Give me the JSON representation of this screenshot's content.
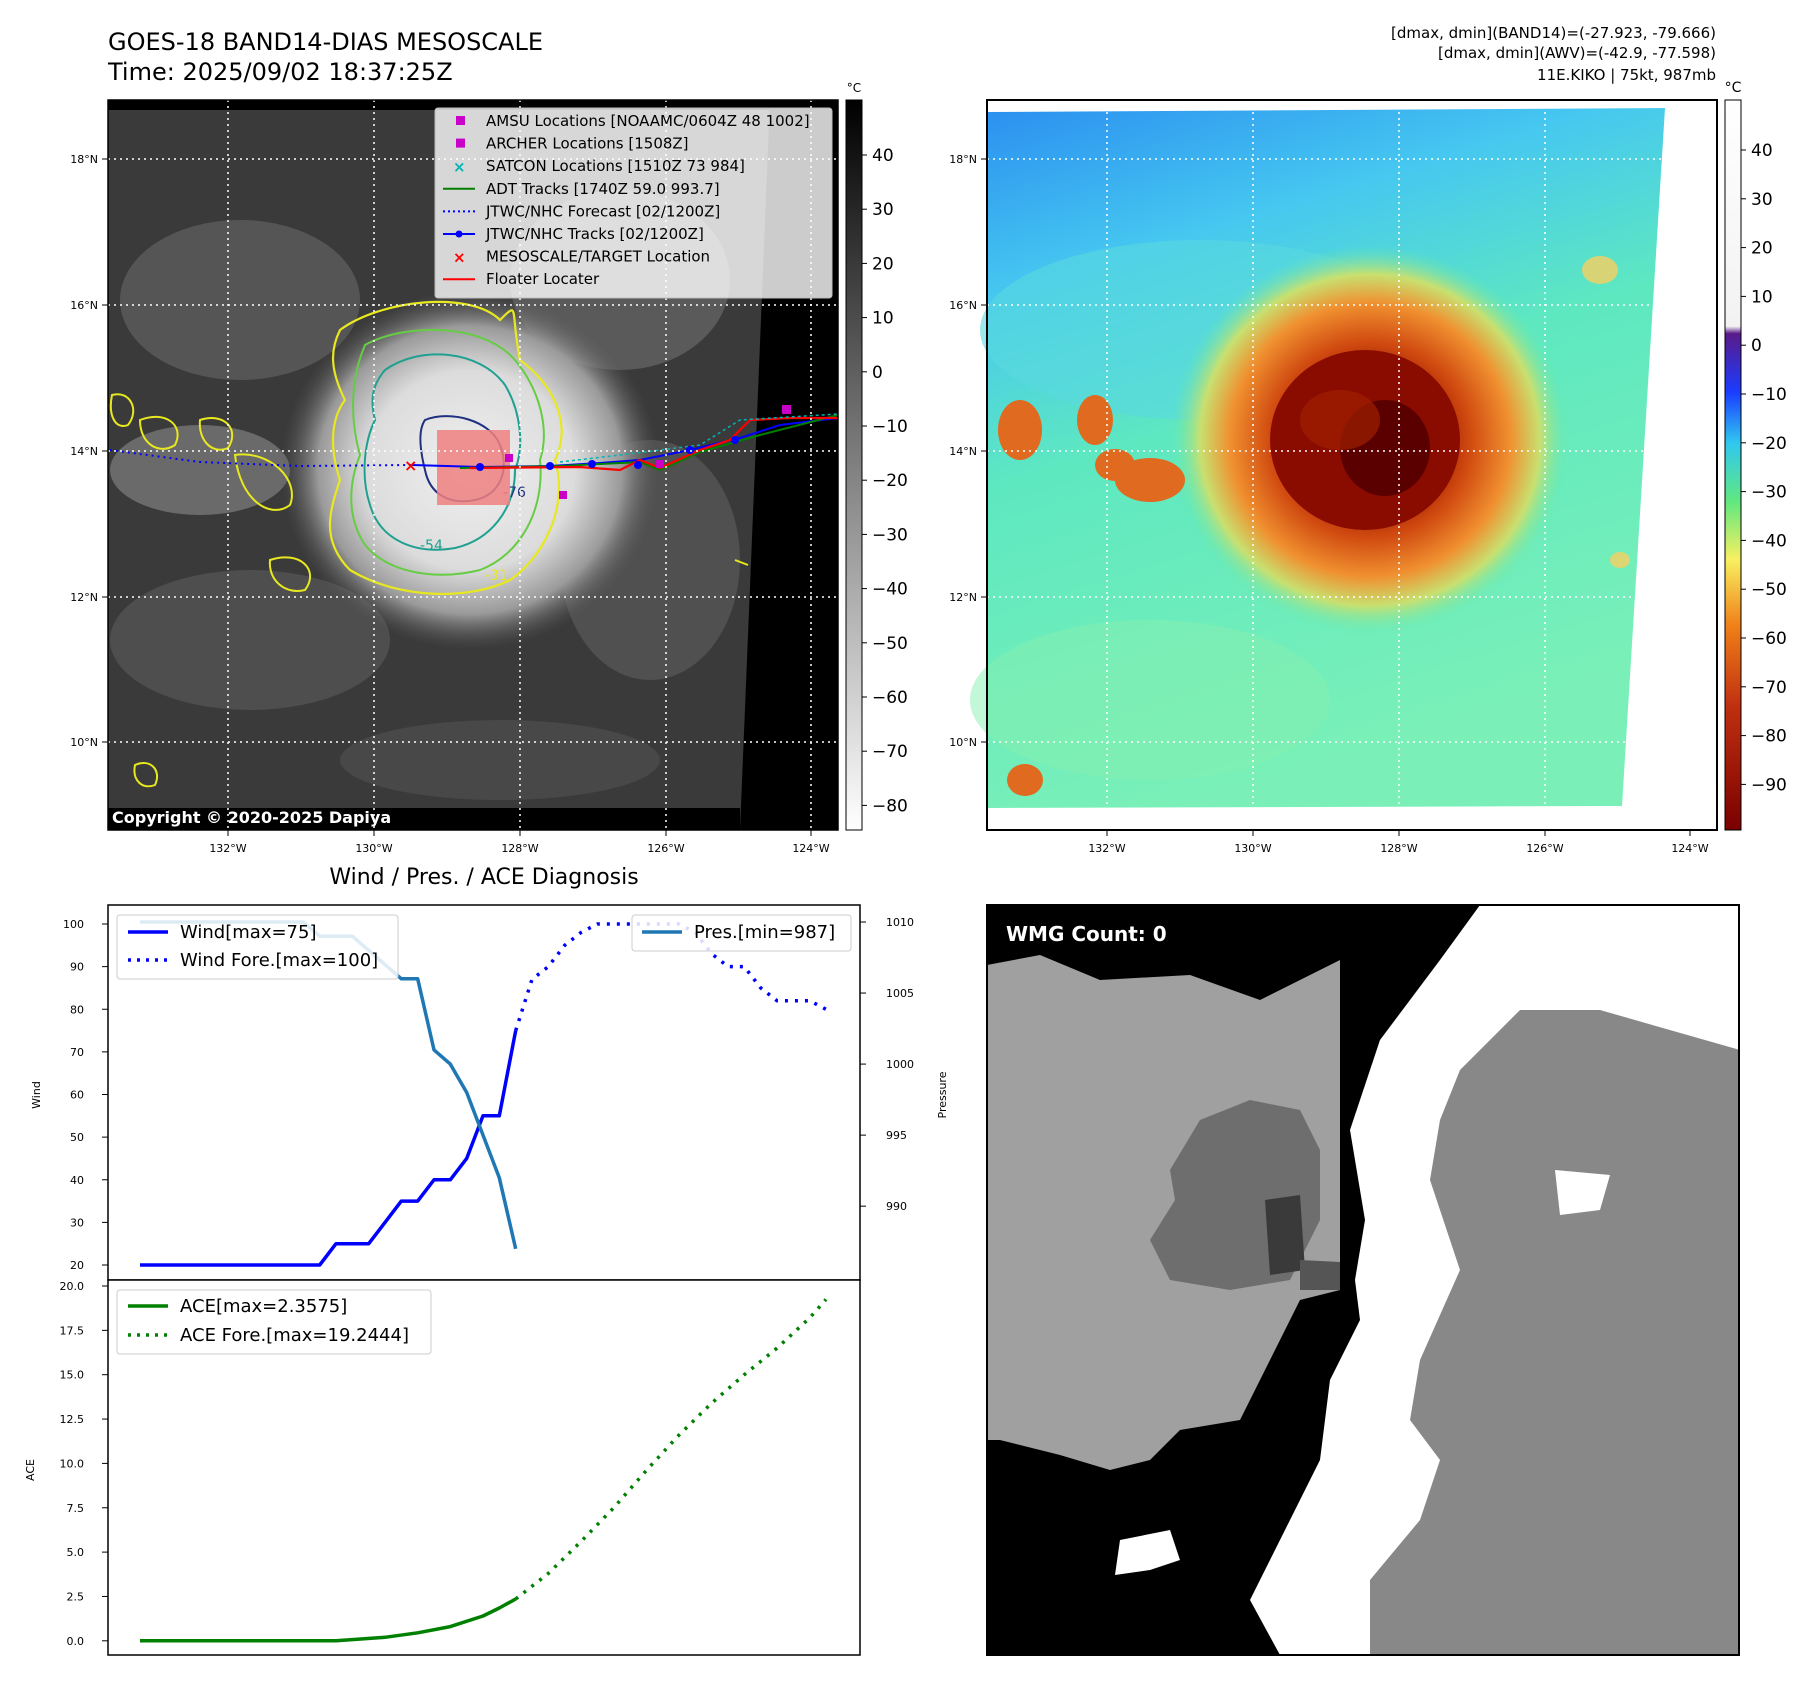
{
  "header": {
    "title_line1": "GOES-18 BAND14-DIAS MESOSCALE",
    "title_line2": "Time: 2025/09/02 18:37:25Z",
    "info_line1": "[dmax, dmin](BAND14)=(-27.923, -79.666)",
    "info_line2": "[dmax, dmin](AWV)=(-42.9, -77.598)",
    "info_line3": "11E.KIKO | 75kt, 987mb"
  },
  "map": {
    "lat_labels": [
      "18°N",
      "16°N",
      "14°N",
      "12°N",
      "10°N"
    ],
    "lon_labels": [
      "132°W",
      "130°W",
      "128°W",
      "126°W",
      "124°W"
    ],
    "copyright": "Copyright © 2020-2025 Dapiya",
    "contour_labels": [
      "-54",
      "-76",
      "-31"
    ],
    "legend": [
      {
        "label": "AMSU Locations [NOAAMC/0604Z 48 1002]",
        "color": "#c800c8",
        "marker": "square"
      },
      {
        "label": "ARCHER Locations [1508Z]",
        "color": "#c800c8",
        "marker": "square"
      },
      {
        "label": "SATCON Locations [1510Z 73 984]",
        "color": "#00b4b4",
        "marker": "x"
      },
      {
        "label": "ADT Tracks [1740Z 59.0 993.7]",
        "color": "#008000",
        "marker": "line"
      },
      {
        "label": "JTWC/NHC Forecast [02/1200Z]",
        "color": "#0000ff",
        "marker": "dotted"
      },
      {
        "label": "JTWC/NHC Tracks [02/1200Z]",
        "color": "#0000ff",
        "marker": "line-dot"
      },
      {
        "label": "MESOSCALE/TARGET Location",
        "color": "#ff0000",
        "marker": "x"
      },
      {
        "label": "Floater Locater",
        "color": "#ff0000",
        "marker": "line"
      }
    ]
  },
  "colorbar_gray": {
    "unit": "°C",
    "ticks": [
      "40",
      "30",
      "20",
      "10",
      "0",
      "−10",
      "−20",
      "−30",
      "−40",
      "−50",
      "−60",
      "−70",
      "−80"
    ]
  },
  "colorbar_color": {
    "unit": "°C",
    "ticks": [
      "40",
      "30",
      "20",
      "10",
      "0",
      "−10",
      "−20",
      "−30",
      "−40",
      "−50",
      "−60",
      "−70",
      "−80",
      "−90"
    ]
  },
  "wmg": {
    "label": "WMG Count: 0"
  },
  "chart_data": [
    {
      "type": "line",
      "title": "Wind / Pres. / ACE Diagnosis",
      "ylabel": "Wind",
      "ylabel_right": "Pressure",
      "ylim": [
        20,
        100
      ],
      "ylim_right": [
        986,
        1010
      ],
      "yticks": [
        "100",
        "90",
        "80",
        "70",
        "60",
        "50",
        "40",
        "30",
        "20"
      ],
      "yticks_right": [
        "1010",
        "1005",
        "1000",
        "995",
        "990"
      ],
      "series": [
        {
          "name": "Wind[max=75]",
          "color": "#0000ff",
          "style": "solid",
          "x": [
            0,
            1,
            2,
            3,
            4,
            5,
            6,
            7,
            8,
            9,
            10,
            11,
            12,
            13,
            14,
            15,
            16,
            17,
            18,
            19,
            20,
            21,
            22,
            23
          ],
          "values": [
            20,
            20,
            20,
            20,
            20,
            20,
            20,
            20,
            20,
            20,
            20,
            20,
            25,
            25,
            25,
            30,
            35,
            35,
            40,
            40,
            45,
            55,
            55,
            75
          ]
        },
        {
          "name": "Wind Fore.[max=100]",
          "color": "#0000ff",
          "style": "dotted",
          "x": [
            23,
            24,
            25,
            26,
            27,
            28,
            29,
            30,
            31,
            32,
            33,
            34,
            35,
            36,
            37,
            38,
            39,
            40,
            41,
            42
          ],
          "values": [
            75,
            87,
            90,
            95,
            98,
            100,
            100,
            100,
            100,
            100,
            100,
            98,
            93,
            90,
            90,
            85,
            82,
            82,
            82,
            80
          ]
        },
        {
          "name": "Pres.[min=987]",
          "color": "#1f77b4",
          "style": "solid",
          "axis": "right",
          "x": [
            0,
            1,
            2,
            3,
            4,
            5,
            6,
            7,
            8,
            9,
            10,
            11,
            12,
            13,
            14,
            15,
            16,
            17,
            18,
            19,
            20,
            21,
            22,
            23
          ],
          "values": [
            1010,
            1010,
            1010,
            1010,
            1010,
            1010,
            1010,
            1010,
            1010,
            1010,
            1010,
            1009,
            1009,
            1009,
            1008,
            1007,
            1006,
            1006,
            1001,
            1000,
            998,
            995,
            992,
            987
          ]
        }
      ]
    },
    {
      "type": "line",
      "ylabel": "ACE",
      "ylim": [
        -0.8,
        20
      ],
      "yticks": [
        "20.0",
        "17.5",
        "15.0",
        "12.5",
        "10.0",
        "7.5",
        "5.0",
        "2.5",
        "0.0"
      ],
      "series": [
        {
          "name": "ACE[max=2.3575]",
          "color": "#008000",
          "style": "solid",
          "x": [
            0,
            4,
            8,
            12,
            15,
            17,
            19,
            21,
            22,
            23
          ],
          "values": [
            0,
            0,
            0,
            0,
            0.2,
            0.45,
            0.8,
            1.4,
            1.85,
            2.3575
          ]
        },
        {
          "name": "ACE Fore.[max=19.2444]",
          "color": "#008000",
          "style": "dotted",
          "x": [
            23,
            25,
            27,
            29,
            31,
            33,
            35,
            37,
            39,
            41,
            42
          ],
          "values": [
            2.3575,
            3.8,
            5.6,
            7.5,
            9.6,
            11.6,
            13.4,
            15.0,
            16.5,
            18.2,
            19.2444
          ]
        }
      ]
    }
  ]
}
